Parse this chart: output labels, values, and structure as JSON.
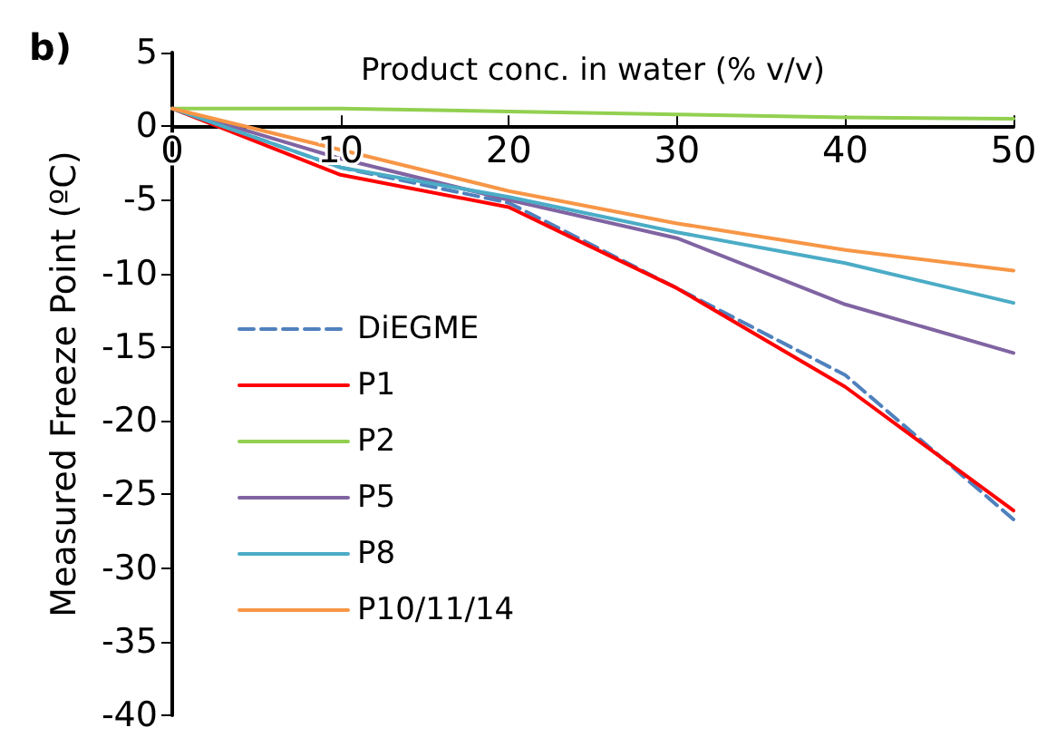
{
  "chart_data": {
    "type": "line",
    "xlabel": "Product conc. in water (% v/v)",
    "ylabel": "Measured Freeze Point (ºC)",
    "annotations": [
      "b)"
    ],
    "x": [
      0,
      10,
      20,
      30,
      40,
      50
    ],
    "xlim": [
      0,
      50
    ],
    "xticks": [
      0,
      10,
      20,
      30,
      40,
      50
    ],
    "ylim": [
      -40,
      5
    ],
    "yticks": [
      -40,
      -35,
      -30,
      -25,
      -20,
      -15,
      -10,
      -5,
      0,
      5
    ],
    "grid": false,
    "legend": "bottom left",
    "marker": "none",
    "series": [
      {
        "name": "DiEGME",
        "color": "#4f81bd",
        "line_style": "dashed",
        "values": [
          1.2,
          -2.8,
          -5.2,
          -11,
          -16.9,
          -26.7
        ]
      },
      {
        "name": "P1",
        "color": "#ff0000",
        "values": [
          1.2,
          -3.3,
          -5.5,
          -11,
          -17.7,
          -26.1
        ]
      },
      {
        "name": "P2",
        "color": "#92d050",
        "values": [
          1.2,
          1.2,
          1.0,
          0.8,
          0.6,
          0.5
        ]
      },
      {
        "name": "P5",
        "color": "#8064a2",
        "values": [
          1.2,
          -2.2,
          -5.0,
          -7.6,
          -12.1,
          -15.4
        ]
      },
      {
        "name": "P8",
        "color": "#4bacc6",
        "values": [
          1.2,
          -2.8,
          -4.8,
          -7.2,
          -9.3,
          -12.0
        ]
      },
      {
        "name": "P10/11/14",
        "color": "#f79646",
        "values": [
          1.2,
          -1.6,
          -4.4,
          -6.6,
          -8.4,
          -9.8
        ]
      }
    ]
  }
}
